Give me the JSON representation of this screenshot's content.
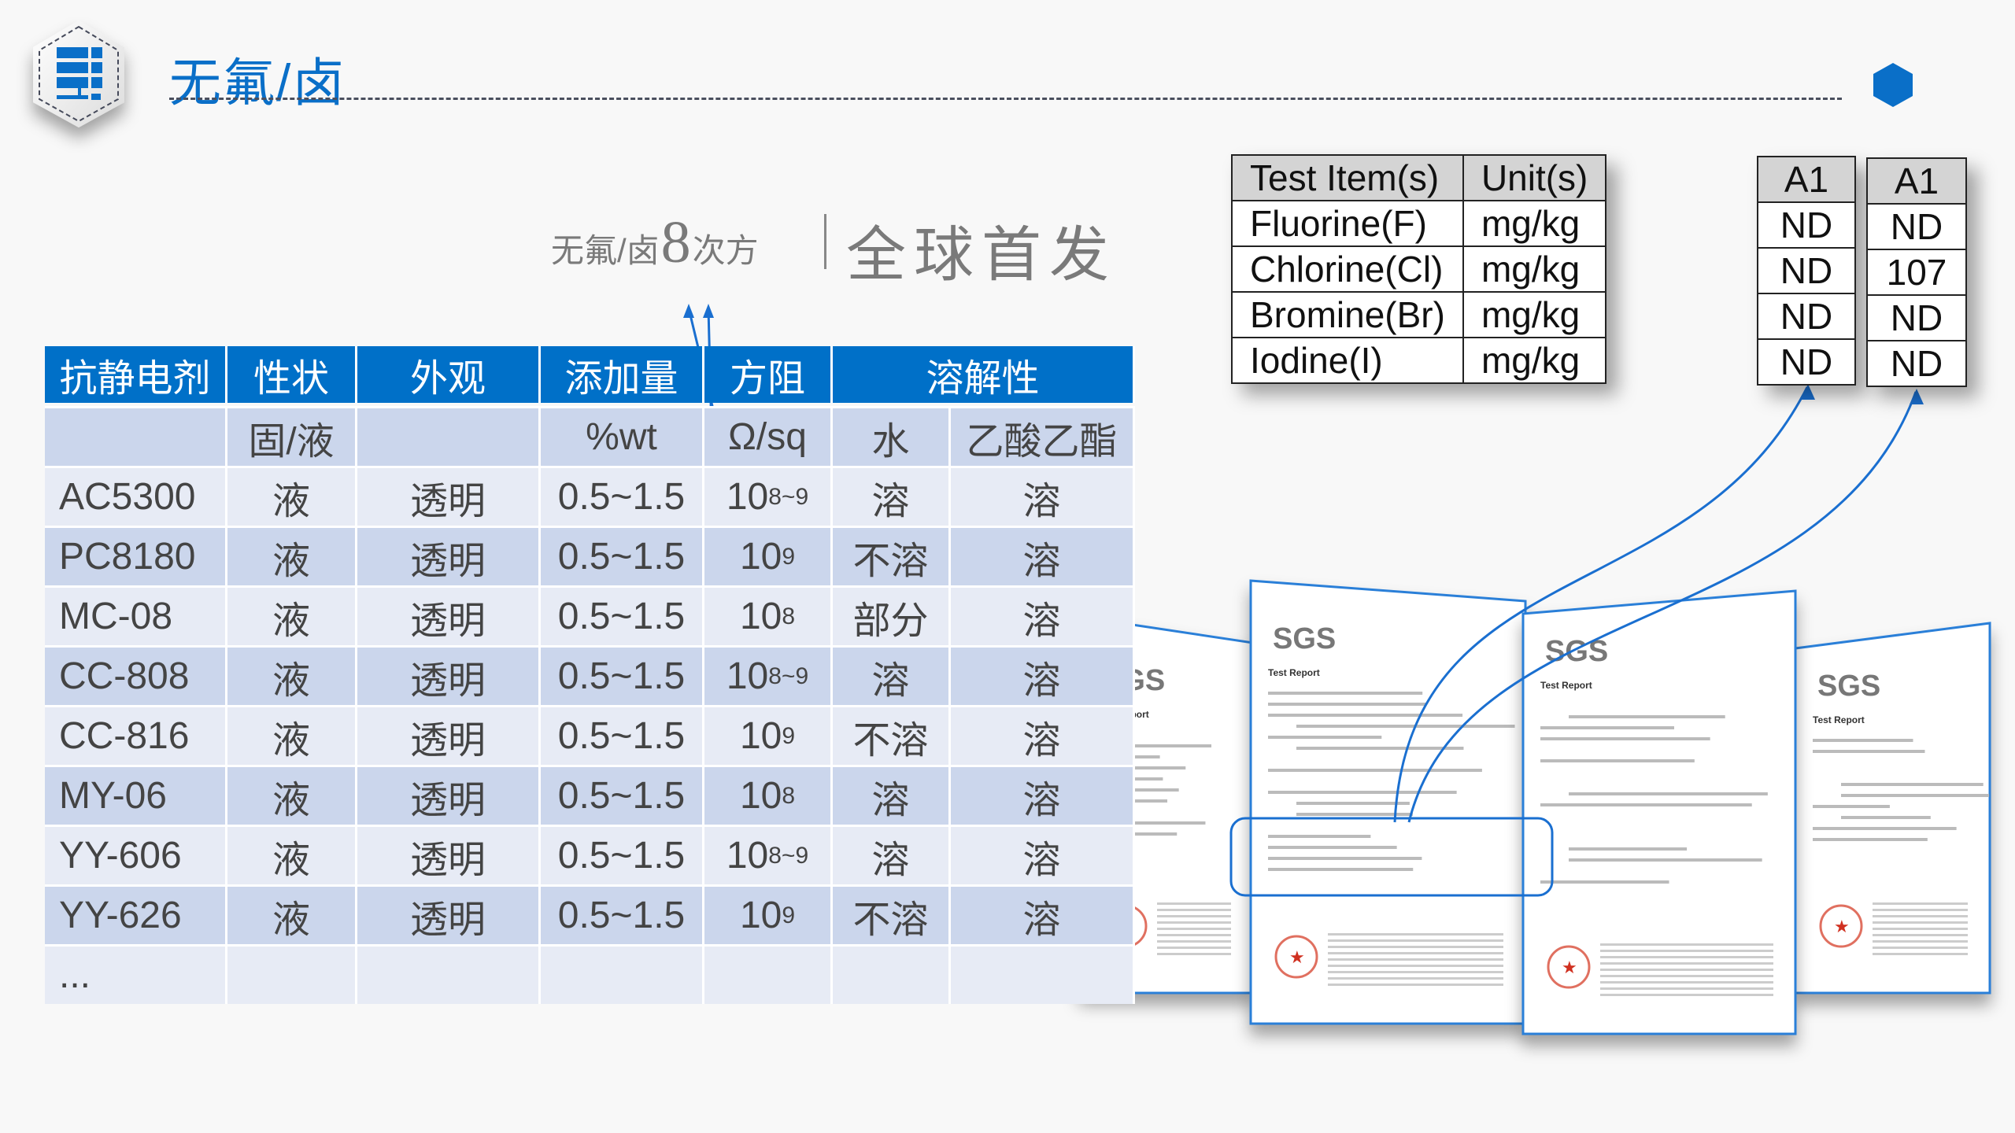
{
  "header": {
    "title": "无氟/卤",
    "icon": "server-rack-icon",
    "accent": "#0070c8"
  },
  "subtitle": {
    "prefix": "无氟/卤",
    "number": "8",
    "suffix": "次方",
    "tagline": "全球首发"
  },
  "table": {
    "headers": [
      "抗静电剂",
      "性状",
      "外观",
      "添加量",
      "方阻",
      "溶解性"
    ],
    "units": [
      "",
      "固/液",
      "",
      "%wt",
      "Ω/sq",
      "水",
      "乙酸乙酯"
    ],
    "rows": [
      {
        "name": "AC5300",
        "state": "液",
        "look": "透明",
        "amount": "0.5~1.5",
        "base": "10",
        "exp": "8~9",
        "water": "溶",
        "ea": "溶"
      },
      {
        "name": "PC8180",
        "state": "液",
        "look": "透明",
        "amount": "0.5~1.5",
        "base": "10",
        "exp": "9",
        "water": "不溶",
        "ea": "溶"
      },
      {
        "name": "MC-08",
        "state": "液",
        "look": "透明",
        "amount": "0.5~1.5",
        "base": "10",
        "exp": "8",
        "water": "部分",
        "ea": "溶",
        "circled": true
      },
      {
        "name": "CC-808",
        "state": "液",
        "look": "透明",
        "amount": "0.5~1.5",
        "base": "10",
        "exp": "8~9",
        "water": "溶",
        "ea": "溶"
      },
      {
        "name": "CC-816",
        "state": "液",
        "look": "透明",
        "amount": "0.5~1.5",
        "base": "10",
        "exp": "9",
        "water": "不溶",
        "ea": "溶"
      },
      {
        "name": "MY-06",
        "state": "液",
        "look": "透明",
        "amount": "0.5~1.5",
        "base": "10",
        "exp": "8",
        "water": "溶",
        "ea": "溶",
        "circled": true
      },
      {
        "name": "YY-606",
        "state": "液",
        "look": "透明",
        "amount": "0.5~1.5",
        "base": "10",
        "exp": "8~9",
        "water": "溶",
        "ea": "溶"
      },
      {
        "name": "YY-626",
        "state": "液",
        "look": "透明",
        "amount": "0.5~1.5",
        "base": "10",
        "exp": "9",
        "water": "不溶",
        "ea": "溶"
      }
    ],
    "more": "..."
  },
  "test_table": {
    "headers": [
      "Test Item(s)",
      "Unit(s)"
    ],
    "rows": [
      [
        "Fluorine(F)",
        "mg/kg"
      ],
      [
        "Chlorine(Cl)",
        "mg/kg"
      ],
      [
        "Bromine(Br)",
        "mg/kg"
      ],
      [
        "Iodine(I)",
        "mg/kg"
      ]
    ]
  },
  "results": [
    {
      "header": "A1",
      "values": [
        "ND",
        "ND",
        "ND",
        "ND"
      ]
    },
    {
      "header": "A1",
      "values": [
        "ND",
        "107",
        "ND",
        "ND"
      ]
    }
  ],
  "documents": {
    "logo": "SGS",
    "heading": "Test Report"
  }
}
